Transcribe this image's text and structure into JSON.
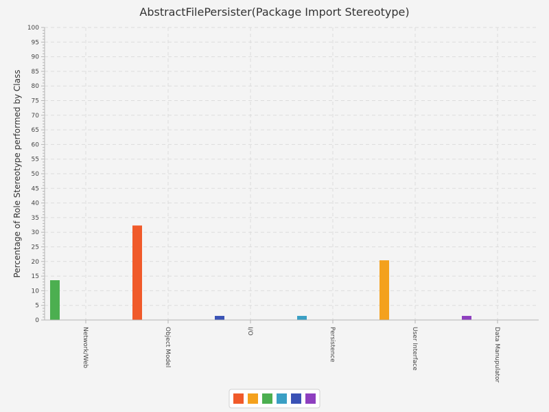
{
  "chart_data": {
    "type": "bar",
    "title": "AbstractFilePersister(Package Import Stereotype)",
    "ylabel": "Percentage of Role Stereotype performed by Class",
    "xlabel": "",
    "ylim": [
      0,
      100
    ],
    "ytick_step": 5,
    "grid": true,
    "legend_position": "bottom",
    "categories": [
      "Network/Web",
      "Object Model",
      "I/O",
      "Persistence",
      "User Interface",
      "Data Manupulator"
    ],
    "series": [
      {
        "color": "#f05a2a",
        "values": [
          0,
          32.3,
          0,
          0,
          0,
          0
        ]
      },
      {
        "color": "#f4a11d",
        "values": [
          0,
          0,
          0,
          0,
          20.4,
          0
        ]
      },
      {
        "color": "#4caf50",
        "values": [
          13.6,
          0,
          0,
          0,
          0,
          0
        ]
      },
      {
        "color": "#3a9fc4",
        "values": [
          0,
          0,
          0,
          1.4,
          0,
          0
        ]
      },
      {
        "color": "#3a52b5",
        "values": [
          0,
          0,
          1.4,
          0,
          0,
          0
        ]
      },
      {
        "color": "#8e3fbf",
        "values": [
          0,
          0,
          0,
          0,
          0,
          1.4
        ]
      }
    ]
  }
}
